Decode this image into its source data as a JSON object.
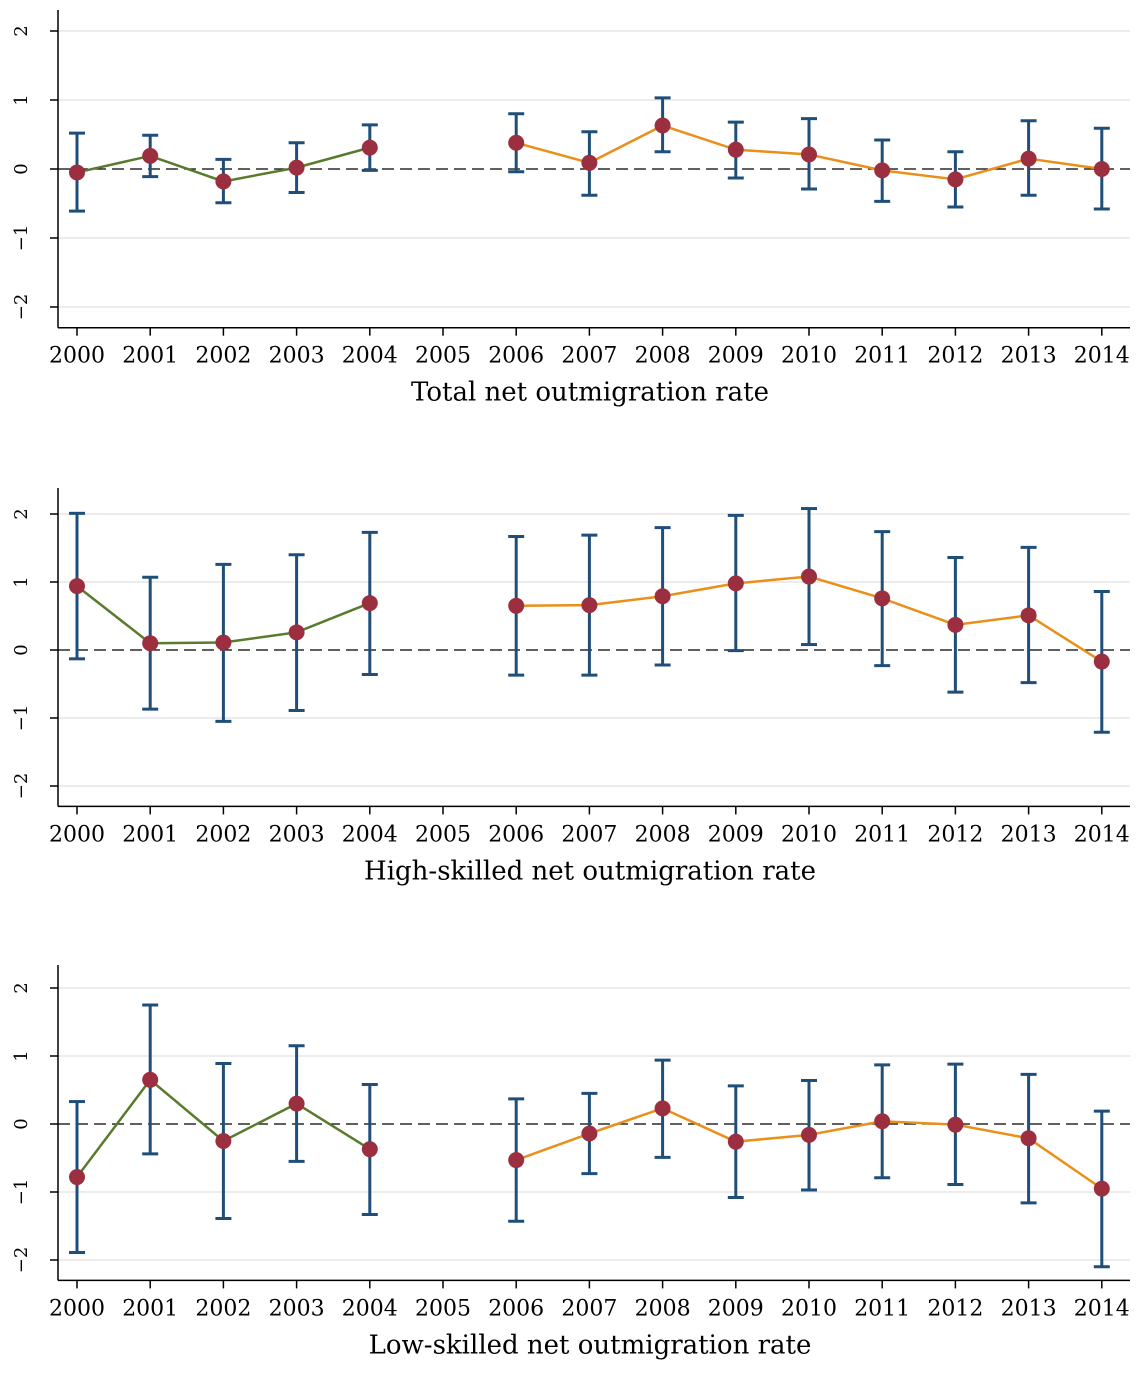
{
  "chart_data": [
    {
      "type": "line",
      "xlabel": "Total net outmigration rate",
      "ylabel": "",
      "ylim": [
        -2.3,
        2.3
      ],
      "yticks": [
        "-2",
        "-1",
        "0",
        "1",
        "2"
      ],
      "categories": [
        "2000",
        "2001",
        "2002",
        "2003",
        "2004",
        "2005",
        "2006",
        "2007",
        "2008",
        "2009",
        "2010",
        "2011",
        "2012",
        "2013",
        "2014"
      ],
      "reference_line": 0,
      "grid": true,
      "series": [
        {
          "color": "#5a7a2e",
          "x": [
            "2000",
            "2001",
            "2002",
            "2003",
            "2004"
          ],
          "values": [
            -0.05,
            0.19,
            -0.18,
            0.02,
            0.31
          ],
          "ci_low": [
            -0.61,
            -0.11,
            -0.49,
            -0.34,
            -0.02
          ],
          "ci_high": [
            0.52,
            0.49,
            0.14,
            0.38,
            0.64
          ]
        },
        {
          "color": "#e8901a",
          "x": [
            "2006",
            "2007",
            "2008",
            "2009",
            "2010",
            "2011",
            "2012",
            "2013",
            "2014"
          ],
          "values": [
            0.38,
            0.09,
            0.63,
            0.28,
            0.21,
            -0.02,
            -0.15,
            0.15,
            0.0
          ],
          "ci_low": [
            -0.04,
            -0.38,
            0.25,
            -0.13,
            -0.29,
            -0.47,
            -0.55,
            -0.38,
            -0.58
          ],
          "ci_high": [
            0.8,
            0.54,
            1.03,
            0.68,
            0.73,
            0.42,
            0.25,
            0.7,
            0.59
          ]
        }
      ],
      "marker_color": "#9b2f3f",
      "errorbar_color": "#1f4e79"
    },
    {
      "type": "line",
      "xlabel": "High-skilled net outmigration rate",
      "ylabel": "",
      "ylim": [
        -2.3,
        2.3
      ],
      "yticks": [
        "-2",
        "-1",
        "0",
        "1",
        "2"
      ],
      "categories": [
        "2000",
        "2001",
        "2002",
        "2003",
        "2004",
        "2005",
        "2006",
        "2007",
        "2008",
        "2009",
        "2010",
        "2011",
        "2012",
        "2013",
        "2014"
      ],
      "reference_line": 0,
      "grid": true,
      "series": [
        {
          "color": "#5a7a2e",
          "x": [
            "2000",
            "2001",
            "2002",
            "2003",
            "2004"
          ],
          "values": [
            0.94,
            0.1,
            0.11,
            0.26,
            0.69
          ],
          "ci_low": [
            -0.13,
            -0.87,
            -1.05,
            -0.89,
            -0.36
          ],
          "ci_high": [
            2.01,
            1.07,
            1.26,
            1.4,
            1.73
          ]
        },
        {
          "color": "#e8901a",
          "x": [
            "2006",
            "2007",
            "2008",
            "2009",
            "2010",
            "2011",
            "2012",
            "2013",
            "2014"
          ],
          "values": [
            0.65,
            0.66,
            0.79,
            0.98,
            1.08,
            0.76,
            0.37,
            0.51,
            -0.17
          ],
          "ci_low": [
            -0.37,
            -0.37,
            -0.22,
            -0.01,
            0.08,
            -0.23,
            -0.62,
            -0.48,
            -1.21
          ],
          "ci_high": [
            1.67,
            1.69,
            1.8,
            1.98,
            2.08,
            1.74,
            1.36,
            1.51,
            0.86
          ]
        }
      ],
      "marker_color": "#9b2f3f",
      "errorbar_color": "#1f4e79"
    },
    {
      "type": "line",
      "xlabel": "Low-skilled net outmigration rate",
      "ylabel": "",
      "ylim": [
        -2.3,
        2.3
      ],
      "yticks": [
        "-2",
        "-1",
        "0",
        "1",
        "2"
      ],
      "categories": [
        "2000",
        "2001",
        "2002",
        "2003",
        "2004",
        "2005",
        "2006",
        "2007",
        "2008",
        "2009",
        "2010",
        "2011",
        "2012",
        "2013",
        "2014"
      ],
      "reference_line": 0,
      "grid": true,
      "series": [
        {
          "color": "#5a7a2e",
          "x": [
            "2000",
            "2001",
            "2002",
            "2003",
            "2004"
          ],
          "values": [
            -0.78,
            0.65,
            -0.25,
            0.3,
            -0.37
          ],
          "ci_low": [
            -1.89,
            -0.44,
            -1.39,
            -0.55,
            -1.33
          ],
          "ci_high": [
            0.33,
            1.75,
            0.89,
            1.15,
            0.58
          ]
        },
        {
          "color": "#e8901a",
          "x": [
            "2006",
            "2007",
            "2008",
            "2009",
            "2010",
            "2011",
            "2012",
            "2013",
            "2014"
          ],
          "values": [
            -0.53,
            -0.14,
            0.23,
            -0.26,
            -0.16,
            0.04,
            -0.01,
            -0.21,
            -0.95
          ],
          "ci_low": [
            -1.43,
            -0.73,
            -0.49,
            -1.08,
            -0.97,
            -0.79,
            -0.89,
            -1.16,
            -2.1
          ],
          "ci_high": [
            0.37,
            0.45,
            0.94,
            0.56,
            0.64,
            0.87,
            0.88,
            0.73,
            0.19
          ]
        }
      ],
      "marker_color": "#9b2f3f",
      "errorbar_color": "#1f4e79"
    }
  ]
}
